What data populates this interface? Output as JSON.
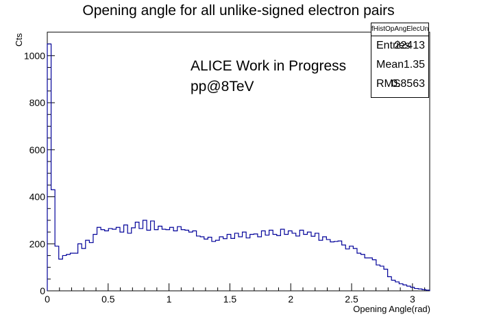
{
  "chart_data": {
    "type": "bar",
    "style": "step-histogram",
    "title": "Opening angle for all unlike-signed electron pairs",
    "xlabel": "Opening Angle(rad)",
    "ylabel": "Cts",
    "xlim": [
      0,
      3.14159
    ],
    "ylim": [
      0,
      1100
    ],
    "xticks": [
      0,
      0.5,
      1,
      1.5,
      2,
      2.5,
      3
    ],
    "xtick_labels": [
      "0",
      "0.5",
      "1",
      "1.5",
      "2",
      "2.5",
      "3"
    ],
    "yticks": [
      0,
      200,
      400,
      600,
      800,
      1000
    ],
    "ytick_labels": [
      "0",
      "200",
      "400",
      "600",
      "800",
      "1000"
    ],
    "annotations": [
      "ALICE Work in Progress",
      "pp@8TeV"
    ],
    "legend_position": "top-right",
    "line_color": "#000099",
    "bin_width": 0.0314159,
    "values": [
      1050,
      430,
      190,
      135,
      150,
      155,
      160,
      160,
      200,
      180,
      215,
      205,
      240,
      270,
      260,
      255,
      265,
      262,
      270,
      250,
      280,
      245,
      268,
      292,
      265,
      300,
      258,
      297,
      260,
      275,
      262,
      260,
      270,
      255,
      273,
      260,
      258,
      250,
      255,
      233,
      230,
      220,
      228,
      210,
      215,
      230,
      222,
      240,
      223,
      245,
      230,
      250,
      225,
      240,
      242,
      230,
      255,
      237,
      258,
      240,
      235,
      262,
      240,
      255,
      245,
      233,
      258,
      240,
      250,
      232,
      245,
      215,
      230,
      218,
      208,
      210,
      212,
      195,
      178,
      190,
      180,
      160,
      155,
      140,
      140,
      132,
      110,
      105,
      92,
      60,
      45,
      38,
      30,
      25,
      20,
      15,
      10,
      8,
      5,
      3
    ]
  },
  "stats_box": {
    "name": "fHistOpAngElecUnLike_MB",
    "entries_label": "Entries",
    "entries_value": "22413",
    "mean_label": "Mean",
    "mean_value": "1.35",
    "rms_label": "RMS",
    "rms_value": "0.8563"
  }
}
